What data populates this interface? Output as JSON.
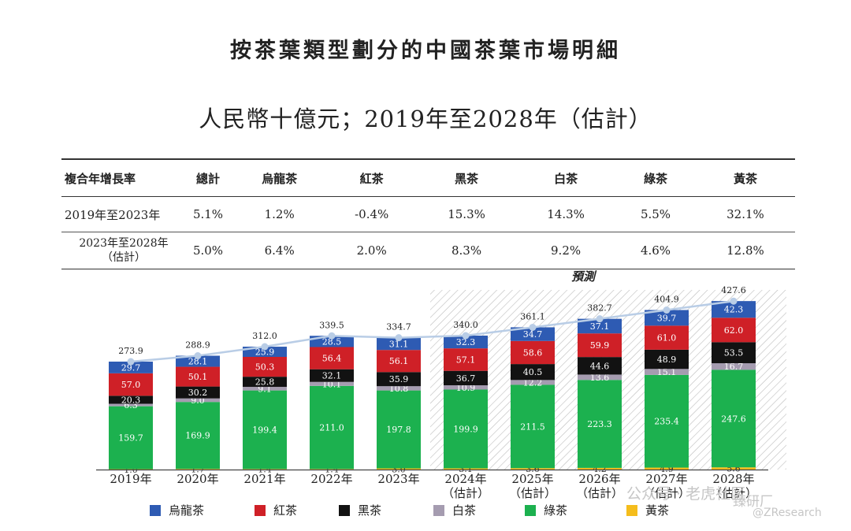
{
  "title": "按茶葉類型劃分的中國茶葉市場明細",
  "subtitle": "人民幣十億元；2019年至2028年（估計）",
  "cagr_table": {
    "headers": [
      "複合年增長率",
      "總計",
      "烏龍茶",
      "紅茶",
      "黑茶",
      "白茶",
      "綠茶",
      "黃茶"
    ],
    "rows": [
      {
        "label": "2019年至2023年",
        "values": [
          "5.1%",
          "1.2%",
          "-0.4%",
          "15.3%",
          "14.3%",
          "5.5%",
          "32.1%"
        ]
      },
      {
        "label_line1": "2023年至2028年",
        "label_line2": "（估計）",
        "values": [
          "5.0%",
          "6.4%",
          "2.0%",
          "8.3%",
          "9.2%",
          "4.6%",
          "12.8%"
        ]
      }
    ]
  },
  "forecast_label": "預測",
  "watermark": {
    "line1": "公众号 · 老虎社区",
    "line2": "臻研厂",
    "line3": "@ZResearch"
  },
  "chart_data": {
    "type": "bar",
    "stacked": true,
    "categories": [
      {
        "line1": "2019年",
        "line2": ""
      },
      {
        "line1": "2020年",
        "line2": ""
      },
      {
        "line1": "2021年",
        "line2": ""
      },
      {
        "line1": "2022年",
        "line2": ""
      },
      {
        "line1": "2023年",
        "line2": ""
      },
      {
        "line1": "2024年",
        "line2": "（估計）"
      },
      {
        "line1": "2025年",
        "line2": "（估計）"
      },
      {
        "line1": "2026年",
        "line2": "（估計）"
      },
      {
        "line1": "2027年",
        "line2": "（估計）"
      },
      {
        "line1": "2028年",
        "line2": "（估計）"
      }
    ],
    "forecast_start_index": 5,
    "series": [
      {
        "name": "黃茶",
        "color": "#f5bd1c",
        "label_color": "#333333",
        "values": [
          1.0,
          1.7,
          1.4,
          1.4,
          3.0,
          3.1,
          3.6,
          4.2,
          4.9,
          5.6
        ]
      },
      {
        "name": "綠茶",
        "color": "#1cb14f",
        "label_color": "#ffffff",
        "values": [
          159.7,
          169.9,
          199.4,
          211.0,
          197.8,
          199.9,
          211.5,
          223.3,
          235.4,
          247.6
        ]
      },
      {
        "name": "白茶",
        "color": "#a59cb0",
        "label_color": "#ffffff",
        "values": [
          6.3,
          9.0,
          9.1,
          10.1,
          10.8,
          10.9,
          12.2,
          13.6,
          15.1,
          16.7
        ]
      },
      {
        "name": "黑茶",
        "color": "#121212",
        "label_color": "#ffffff",
        "values": [
          20.3,
          30.2,
          25.8,
          32.1,
          35.9,
          36.7,
          40.5,
          44.6,
          48.9,
          53.5
        ]
      },
      {
        "name": "紅茶",
        "color": "#cf2027",
        "label_color": "#ffffff",
        "values": [
          57.0,
          50.1,
          50.3,
          56.4,
          56.1,
          57.1,
          58.6,
          59.9,
          61.0,
          62.0
        ]
      },
      {
        "name": "烏龍茶",
        "color": "#2e5bb3",
        "label_color": "#ffffff",
        "values": [
          29.7,
          28.1,
          25.9,
          28.5,
          31.1,
          32.3,
          34.7,
          37.1,
          39.7,
          42.3
        ]
      }
    ],
    "totals": [
      273.9,
      288.9,
      312.0,
      339.5,
      334.7,
      340.0,
      361.1,
      382.7,
      404.9,
      427.6
    ],
    "total_line_color": "#b9cde6",
    "legend_order": [
      "烏龍茶",
      "紅茶",
      "黑茶",
      "白茶",
      "綠茶",
      "黃茶"
    ],
    "legend_position": "bottom",
    "ylim": [
      0,
      435
    ],
    "grid": false
  }
}
